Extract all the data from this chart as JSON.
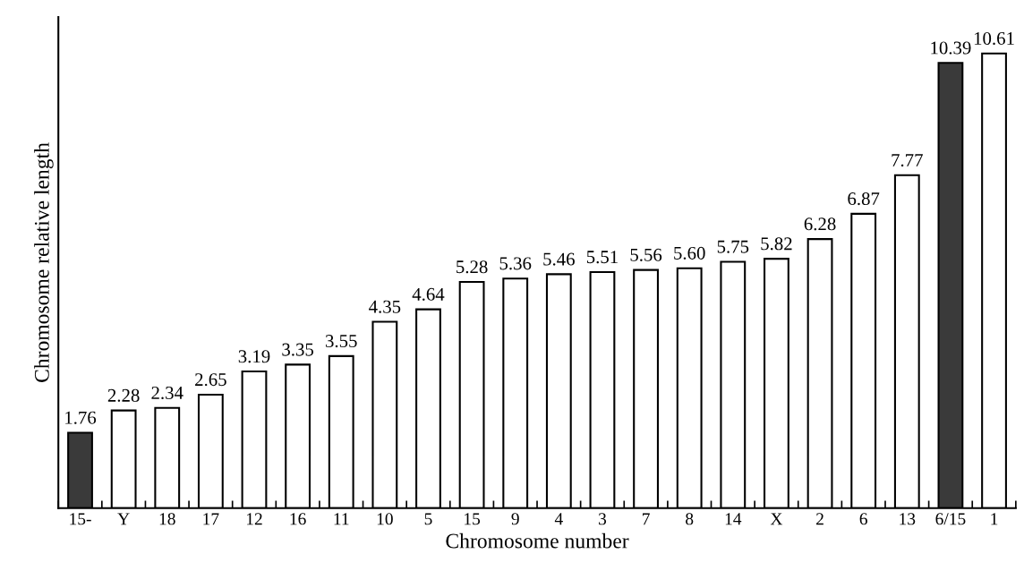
{
  "chart_data": {
    "type": "bar",
    "xlabel": "Chromosome number",
    "ylabel": "Chromosome relative length",
    "categories": [
      "15-",
      "Y",
      "18",
      "17",
      "12",
      "16",
      "11",
      "10",
      "5",
      "15",
      "9",
      "4",
      "3",
      "7",
      "8",
      "14",
      "X",
      "2",
      "6",
      "13",
      "6/15",
      "1"
    ],
    "values": [
      1.76,
      2.28,
      2.34,
      2.65,
      3.19,
      3.35,
      3.55,
      4.35,
      4.64,
      5.28,
      5.36,
      5.46,
      5.51,
      5.56,
      5.6,
      5.75,
      5.82,
      6.28,
      6.87,
      7.77,
      10.39,
      10.61
    ],
    "colors": [
      "#3a3a3a",
      "#ffffff",
      "#ffffff",
      "#ffffff",
      "#ffffff",
      "#ffffff",
      "#ffffff",
      "#ffffff",
      "#ffffff",
      "#ffffff",
      "#ffffff",
      "#ffffff",
      "#ffffff",
      "#ffffff",
      "#ffffff",
      "#ffffff",
      "#ffffff",
      "#ffffff",
      "#ffffff",
      "#ffffff",
      "#3a3a3a",
      "#ffffff"
    ],
    "value_labels": [
      "1.76",
      "2.28",
      "2.34",
      "2.65",
      "3.19",
      "3.35",
      "3.55",
      "4.35",
      "4.64",
      "5.28",
      "5.36",
      "5.46",
      "5.51",
      "5.56",
      "5.60",
      "5.75",
      "5.82",
      "6.28",
      "6.87",
      "7.77",
      "10.39",
      "10.61"
    ],
    "grid": false,
    "legend": false
  }
}
